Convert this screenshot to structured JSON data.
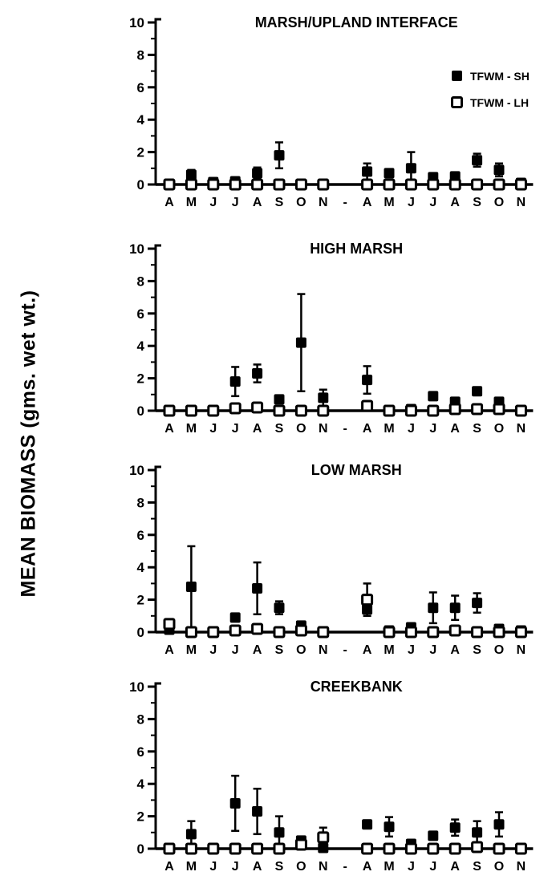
{
  "figure": {
    "ylabel": "MEAN BIOMASS (gms. wet wt.)"
  },
  "legend": {
    "entries": [
      {
        "label": "TFWM - SH",
        "marker": "filled-square"
      },
      {
        "label": "TFWM - LH",
        "marker": "open-square"
      }
    ]
  },
  "chart_data": [
    {
      "type": "scatter",
      "title": "MARSH/UPLAND INTERFACE",
      "xlabel": "",
      "ylabel": "MEAN BIOMASS (gms. wet wt.)",
      "ylim": [
        0,
        10
      ],
      "yticks": [
        0,
        2,
        4,
        6,
        8,
        10
      ],
      "grid": false,
      "legend_position": "upper right",
      "categories": [
        "A",
        "M",
        "J",
        "J",
        "A",
        "S",
        "O",
        "N",
        "-",
        "A",
        "M",
        "J",
        "J",
        "A",
        "S",
        "O",
        "N"
      ],
      "series": [
        {
          "name": "TFWM - SH",
          "marker": "filled-square",
          "values": [
            0.05,
            0.6,
            0.15,
            0.2,
            0.7,
            1.8,
            0.05,
            0.05,
            null,
            0.8,
            0.7,
            1.0,
            0.45,
            0.5,
            1.5,
            0.9,
            0.1
          ],
          "errors": [
            0,
            0.3,
            0,
            0,
            0.35,
            0.8,
            0,
            0,
            null,
            0.5,
            0.2,
            1.0,
            0,
            0,
            0.4,
            0.4,
            0
          ]
        },
        {
          "name": "TFWM - LH",
          "marker": "open-square",
          "values": [
            0,
            0,
            0,
            0,
            0,
            0,
            0,
            0,
            null,
            0,
            0,
            0,
            0,
            0,
            0,
            0,
            0
          ],
          "errors": [
            0,
            0,
            0,
            0,
            0,
            0,
            0,
            0,
            null,
            0,
            0,
            0,
            0,
            0,
            0,
            0,
            0
          ]
        }
      ]
    },
    {
      "type": "scatter",
      "title": "HIGH MARSH",
      "xlabel": "",
      "ylim": [
        0,
        10
      ],
      "yticks": [
        0,
        2,
        4,
        6,
        8,
        10
      ],
      "grid": false,
      "categories": [
        "A",
        "M",
        "J",
        "J",
        "A",
        "S",
        "O",
        "N",
        "-",
        "A",
        "M",
        "J",
        "J",
        "A",
        "S",
        "O",
        "N"
      ],
      "series": [
        {
          "name": "TFWM - SH",
          "marker": "filled-square",
          "values": [
            0.05,
            0.05,
            0.05,
            1.8,
            2.3,
            0.7,
            4.2,
            0.8,
            null,
            1.9,
            0.05,
            0.1,
            0.9,
            0.55,
            1.2,
            0.55,
            0.05
          ],
          "errors": [
            0,
            0,
            0,
            0.9,
            0.55,
            0,
            3.0,
            0.5,
            null,
            0.85,
            0,
            0,
            0,
            0,
            0,
            0,
            0
          ]
        },
        {
          "name": "TFWM - LH",
          "marker": "open-square",
          "values": [
            0,
            0,
            0,
            0.15,
            0.2,
            0,
            0,
            0,
            null,
            0.3,
            0,
            0,
            0,
            0.1,
            0.1,
            0.1,
            0
          ],
          "errors": [
            0,
            0,
            0,
            0,
            0,
            0,
            0,
            0,
            null,
            0,
            0,
            0,
            0,
            0,
            0,
            0,
            0
          ]
        }
      ]
    },
    {
      "type": "scatter",
      "title": "LOW MARSH",
      "xlabel": "",
      "ylim": [
        0,
        10
      ],
      "yticks": [
        0,
        2,
        4,
        6,
        8,
        10
      ],
      "grid": false,
      "categories": [
        "A",
        "M",
        "J",
        "J",
        "A",
        "S",
        "O",
        "N",
        "-",
        "A",
        "M",
        "J",
        "J",
        "A",
        "S",
        "O",
        "N"
      ],
      "series": [
        {
          "name": "TFWM - SH",
          "marker": "filled-square",
          "values": [
            0.15,
            2.8,
            0.05,
            0.9,
            2.7,
            1.5,
            0.4,
            0.05,
            null,
            1.4,
            0.1,
            0.3,
            1.5,
            1.5,
            1.8,
            0.2,
            0.1
          ],
          "errors": [
            0,
            2.5,
            0,
            0,
            1.6,
            0.4,
            0,
            0,
            null,
            0,
            0,
            0,
            0.95,
            0.75,
            0.6,
            0,
            0
          ]
        },
        {
          "name": "TFWM - LH",
          "marker": "open-square",
          "values": [
            0.5,
            0,
            0,
            0.1,
            0.2,
            0,
            0.1,
            0,
            null,
            2.0,
            0,
            0,
            0,
            0.1,
            0,
            0,
            0
          ],
          "errors": [
            0.3,
            0,
            0,
            0,
            0,
            0,
            0,
            0,
            null,
            1.0,
            0,
            0,
            0,
            0,
            0,
            0,
            0
          ]
        }
      ]
    },
    {
      "type": "scatter",
      "title": "CREEKBANK",
      "xlabel": "",
      "ylim": [
        0,
        10
      ],
      "yticks": [
        0,
        2,
        4,
        6,
        8,
        10
      ],
      "grid": false,
      "categories": [
        "A",
        "M",
        "J",
        "J",
        "A",
        "S",
        "O",
        "N",
        "-",
        "A",
        "M",
        "J",
        "J",
        "A",
        "S",
        "O",
        "N"
      ],
      "series": [
        {
          "name": "TFWM - SH",
          "marker": "filled-square",
          "values": [
            0.05,
            0.9,
            0.05,
            2.8,
            2.3,
            1.0,
            0.5,
            0.05,
            null,
            1.5,
            1.35,
            0.3,
            0.8,
            1.3,
            1.0,
            1.5,
            0.05
          ],
          "errors": [
            0,
            0.8,
            0,
            1.7,
            1.4,
            1.0,
            0,
            0,
            null,
            0.25,
            0.6,
            0,
            0,
            0.5,
            0.7,
            0.75,
            0
          ]
        },
        {
          "name": "TFWM - LH",
          "marker": "open-square",
          "values": [
            0,
            0,
            0,
            0,
            0,
            0,
            0.25,
            0.7,
            null,
            0,
            0,
            0,
            0,
            0,
            0.1,
            0,
            0
          ],
          "errors": [
            0,
            0,
            0,
            0,
            0,
            0,
            0,
            0.6,
            null,
            0,
            0,
            0,
            0,
            0,
            0,
            0,
            0
          ]
        }
      ]
    }
  ],
  "style": {
    "ink_color": "#000000",
    "background_color": "#ffffff"
  }
}
